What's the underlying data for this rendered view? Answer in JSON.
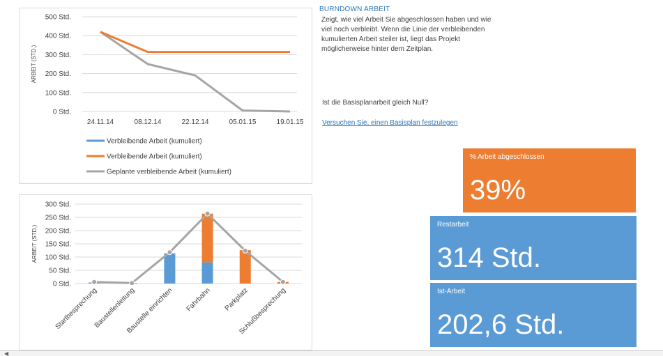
{
  "colors": {
    "blue": "#5b9bd5",
    "orange": "#ed7d31",
    "gray": "#a5a5a5",
    "link": "#2e75b6"
  },
  "info": {
    "title": "BURNDOWN ARBEIT",
    "description": "Zeigt, wie viel Arbeit Sie abgeschlossen haben und wie viel noch verbleibt. Wenn die Linie der verbleibenden kumulierten Arbeit steiler ist, liegt das Projekt möglicherweise hinter dem Zeitplan.",
    "question": "Ist die Basisplanarbeit gleich Null?",
    "link": "Versuchen Sie, einen Basisplan festzulegen"
  },
  "tiles": {
    "complete": {
      "label": "% Arbeit abgeschlossen",
      "value": "39%"
    },
    "remaining": {
      "label": "Restarbeit",
      "value": "314 Std."
    },
    "actual": {
      "label": "Ist-Arbeit",
      "value": "202,6 Std."
    }
  },
  "chart_data": [
    {
      "type": "line",
      "ylabel": "ARBEIT (STD.)",
      "categories": [
        "24.11.14",
        "08.12.14",
        "22.12.14",
        "05.01.15",
        "19.01.15"
      ],
      "y_ticks": [
        "0 Std.",
        "100 Std.",
        "200 Std.",
        "300 Std.",
        "400 Std.",
        "500 Std."
      ],
      "ylim": [
        0,
        500
      ],
      "grid": true,
      "legend_position": "bottom",
      "series": [
        {
          "name": "Verbleibende Arbeit (kumuliert)",
          "color": "#5b9bd5",
          "x": [],
          "values": []
        },
        {
          "name": "Verbleibende Arbeit (kumuliert)",
          "color": "#ed7d31",
          "x": [
            0,
            1,
            2,
            3,
            4
          ],
          "values": [
            420,
            314,
            314,
            314,
            314
          ]
        },
        {
          "name": "Geplante verbleibende Arbeit (kumuliert)",
          "color": "#a5a5a5",
          "x": [
            0,
            1,
            2,
            3,
            4
          ],
          "values": [
            420,
            250,
            190,
            5,
            0
          ]
        }
      ]
    },
    {
      "type": "bar",
      "ylabel": "ARBEIT (STD.)",
      "categories": [
        "Startbesprechung",
        "Baustellenleitung",
        "Baustelle einrichten",
        "Fahrbahn",
        "Parkplatz",
        "Schlußbesprechung"
      ],
      "y_ticks": [
        "0 Std.",
        "50 Std.",
        "100 Std.",
        "150 Std.",
        "200 Std.",
        "250 Std.",
        "300 Std."
      ],
      "ylim": [
        0,
        300
      ],
      "grid": true,
      "stacked": true,
      "series": [
        {
          "color": "#5b9bd5",
          "values": [
            4,
            2,
            114,
            80,
            0,
            0
          ]
        },
        {
          "color": "#ed7d31",
          "values": [
            0,
            0,
            0,
            184,
            126,
            6
          ]
        }
      ],
      "line": {
        "color": "#a5a5a5",
        "values": [
          6,
          2,
          118,
          264,
          124,
          6
        ]
      }
    }
  ]
}
